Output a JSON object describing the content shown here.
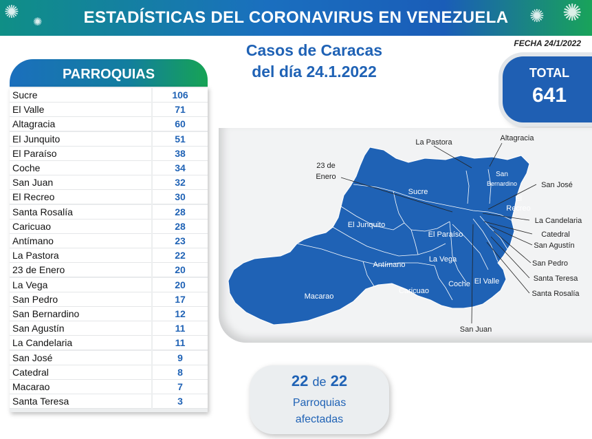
{
  "header": {
    "title": "ESTADÍSTICAS DEL CORONAVIRUS EN VENEZUELA",
    "date_label": "FECHA 24/1/2022"
  },
  "report": {
    "title_line1": "Casos de Caracas",
    "title_line2": "del día 24.1.2022"
  },
  "total": {
    "label": "TOTAL",
    "value": "641"
  },
  "parroquias": {
    "header": "PARROQUIAS",
    "rows": [
      {
        "name": "Sucre",
        "value": "106"
      },
      {
        "name": "El Valle",
        "value": "71"
      },
      {
        "name": "Altagracia",
        "value": "60"
      },
      {
        "name": "El Junquito",
        "value": "51"
      },
      {
        "name": "El Paraíso",
        "value": "38"
      },
      {
        "name": "Coche",
        "value": "34"
      },
      {
        "name": "San Juan",
        "value": "32"
      },
      {
        "name": "El Recreo",
        "value": "30"
      },
      {
        "name": "Santa Rosalía",
        "value": "28"
      },
      {
        "name": "Caricuao",
        "value": "28"
      },
      {
        "name": "Antímano",
        "value": "23"
      },
      {
        "name": "La Pastora",
        "value": "22"
      },
      {
        "name": "23 de Enero",
        "value": "20"
      },
      {
        "name": "La Vega",
        "value": "20"
      },
      {
        "name": "San Pedro",
        "value": "17"
      },
      {
        "name": "San Bernardino",
        "value": "12"
      },
      {
        "name": "San Agustín",
        "value": "11"
      },
      {
        "name": "La Candelaria",
        "value": "11"
      },
      {
        "name": "San José",
        "value": "9"
      },
      {
        "name": "Catedral",
        "value": "8"
      },
      {
        "name": "Macarao",
        "value": "7"
      },
      {
        "name": "Santa Teresa",
        "value": "3"
      }
    ]
  },
  "map": {
    "fill_color": "#1f62b5",
    "inside_labels": {
      "sucre": "Sucre",
      "el_junquito": "El Junquito",
      "antimano": "Antímano",
      "macarao": "Macarao",
      "caricuao": "Caricuao",
      "la_vega": "La Vega",
      "el_paraiso": "El Paraíso",
      "coche": "Coche",
      "el_valle": "El Valle",
      "san_bernardino_1": "San",
      "san_bernardino_2": "Bernardino",
      "el_recreo_1": "El",
      "el_recreo_2": "Recreo"
    },
    "callouts": {
      "la_pastora": "La Pastora",
      "altagracia": "Altagracia",
      "veintitres_1": "23 de",
      "veintitres_2": "Enero",
      "san_jose": "San José",
      "la_candelaria": "La Candelaria",
      "catedral": "Catedral",
      "san_agustin": "San Agustín",
      "san_pedro": "San Pedro",
      "santa_teresa": "Santa Teresa",
      "santa_rosalia": "Santa Rosalía",
      "san_juan": "San Juan"
    }
  },
  "afectadas": {
    "count": "22",
    "connector": "de",
    "total": "22",
    "line1": "Parroquias",
    "line2": "afectadas"
  }
}
